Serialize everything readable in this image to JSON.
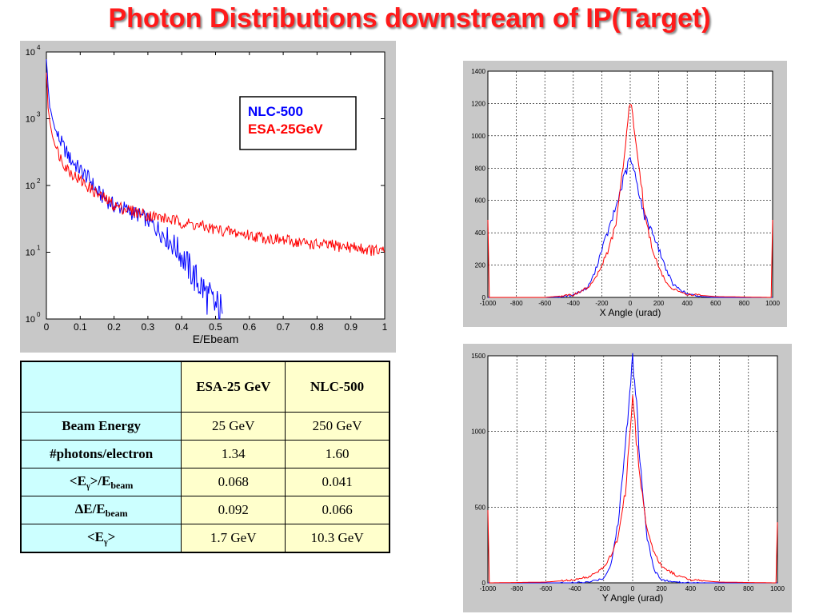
{
  "title": "Photon Distributions downstream of IP(Target)",
  "chart_data": [
    {
      "type": "line",
      "title": "",
      "xlabel": "E/Ebeam",
      "ylabel": "",
      "yscale": "log",
      "xlim": [
        0,
        1
      ],
      "ylim": [
        1,
        10000
      ],
      "xticks": [
        "0",
        "0.1",
        "0.2",
        "0.3",
        "0.4",
        "0.5",
        "0.6",
        "0.7",
        "0.8",
        "0.9",
        "1"
      ],
      "yticks": [
        "10",
        "10",
        "10",
        "10",
        "10"
      ],
      "ytick_exponents": [
        "0",
        "1",
        "2",
        "3",
        "4"
      ],
      "grid": false,
      "legend_position": "top-right",
      "series": [
        {
          "name": "NLC-500",
          "color": "#0000ff",
          "x": [
            0.0,
            0.005,
            0.01,
            0.02,
            0.03,
            0.05,
            0.07,
            0.1,
            0.13,
            0.15,
            0.18,
            0.2,
            0.23,
            0.25,
            0.28,
            0.3,
            0.33,
            0.35,
            0.38,
            0.4,
            0.42,
            0.44,
            0.46,
            0.48,
            0.5,
            0.52
          ],
          "y": [
            8000,
            3000,
            1500,
            900,
            600,
            380,
            250,
            170,
            120,
            80,
            60,
            50,
            45,
            40,
            35,
            30,
            22,
            18,
            12,
            9,
            6,
            4,
            3,
            2,
            1.5,
            1.2
          ]
        },
        {
          "name": "ESA-25GeV",
          "color": "#ff0000",
          "x": [
            0.0,
            0.005,
            0.01,
            0.02,
            0.03,
            0.05,
            0.07,
            0.1,
            0.13,
            0.15,
            0.18,
            0.2,
            0.25,
            0.3,
            0.35,
            0.4,
            0.5,
            0.6,
            0.7,
            0.8,
            0.9,
            1.0
          ],
          "y": [
            5000,
            1500,
            900,
            500,
            350,
            220,
            160,
            120,
            90,
            75,
            60,
            50,
            42,
            36,
            32,
            28,
            22,
            18,
            15,
            13,
            12,
            10
          ]
        }
      ]
    },
    {
      "type": "line",
      "title": "",
      "xlabel": "X Angle (urad)",
      "ylabel": "",
      "xlim": [
        -1000,
        1000
      ],
      "ylim": [
        0,
        1400
      ],
      "xticks": [
        "-1000",
        "-800",
        "-600",
        "-400",
        "-200",
        "0",
        "200",
        "400",
        "600",
        "800",
        "1000"
      ],
      "yticks": [
        "0",
        "200",
        "400",
        "600",
        "800",
        "1000",
        "1200",
        "1400"
      ],
      "grid": true,
      "series": [
        {
          "color": "#0000ff",
          "x": [
            -1000,
            -600,
            -500,
            -400,
            -300,
            -250,
            -200,
            -150,
            -100,
            -50,
            0,
            50,
            100,
            150,
            200,
            250,
            300,
            400,
            500,
            600,
            1000
          ],
          "y": [
            0,
            0,
            2,
            15,
            60,
            150,
            300,
            420,
            560,
            720,
            860,
            700,
            500,
            420,
            300,
            180,
            80,
            20,
            5,
            0,
            0
          ]
        },
        {
          "color": "#ff0000",
          "x": [
            -1000,
            -990,
            -980,
            -600,
            -400,
            -300,
            -250,
            -200,
            -150,
            -100,
            -50,
            0,
            50,
            100,
            150,
            200,
            250,
            300,
            400,
            600,
            980,
            990,
            1000
          ],
          "y": [
            480,
            0,
            0,
            0,
            15,
            60,
            110,
            200,
            300,
            460,
            800,
            1220,
            900,
            520,
            320,
            180,
            100,
            50,
            20,
            5,
            0,
            0,
            480
          ]
        }
      ]
    },
    {
      "type": "line",
      "title": "",
      "xlabel": "Y Angle (urad)",
      "ylabel": "",
      "xlim": [
        -1000,
        1000
      ],
      "ylim": [
        0,
        1500
      ],
      "xticks": [
        "-1000",
        "-800",
        "-600",
        "-400",
        "-200",
        "0",
        "200",
        "400",
        "600",
        "800",
        "1000"
      ],
      "yticks": [
        "0",
        "500",
        "1000",
        "1500"
      ],
      "grid": true,
      "series": [
        {
          "color": "#0000ff",
          "x": [
            -1000,
            -400,
            -300,
            -200,
            -150,
            -100,
            -50,
            -20,
            0,
            20,
            50,
            100,
            150,
            200,
            300,
            400,
            1000
          ],
          "y": [
            0,
            0,
            5,
            30,
            120,
            400,
            900,
            1300,
            1490,
            1300,
            800,
            300,
            80,
            20,
            3,
            0,
            0
          ]
        },
        {
          "color": "#ff0000",
          "x": [
            -1000,
            -990,
            -980,
            -600,
            -400,
            -300,
            -200,
            -150,
            -100,
            -50,
            0,
            50,
            100,
            150,
            200,
            300,
            400,
            600,
            980,
            990,
            1000
          ],
          "y": [
            480,
            0,
            0,
            5,
            20,
            40,
            100,
            180,
            300,
            600,
            1210,
            700,
            350,
            200,
            110,
            50,
            20,
            5,
            0,
            0,
            400
          ]
        }
      ]
    }
  ],
  "table": {
    "headers": [
      "",
      "ESA-25 GeV",
      "NLC-500"
    ],
    "rows": [
      {
        "label": "Beam Energy",
        "values": [
          "25 GeV",
          "250 GeV"
        ]
      },
      {
        "label": "#photons/electron",
        "values": [
          "1.34",
          "1.60"
        ]
      },
      {
        "label": "<Eγ>/Ebeam",
        "values": [
          "0.068",
          "0.041"
        ]
      },
      {
        "label": "ΔE/Ebeam",
        "values": [
          "0.092",
          "0.066"
        ]
      },
      {
        "label": "<Eγ>",
        "values": [
          "1.7 GeV",
          "10.3 GeV"
        ]
      }
    ],
    "label_parts": {
      "lt": "<E",
      "gamma": "γ",
      "gt_slash": ">/E",
      "beam": "beam",
      "delta": "ΔE/E",
      "gt": ">"
    }
  }
}
